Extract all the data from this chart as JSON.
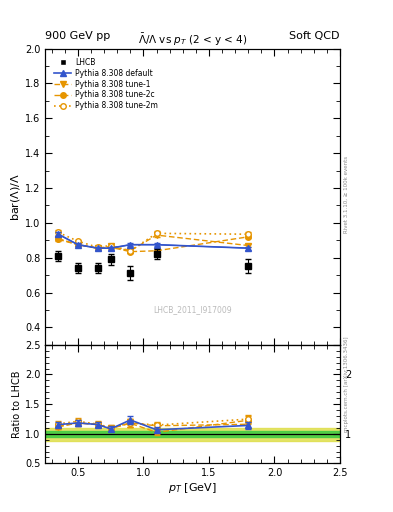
{
  "title_main": "$\\bar{\\Lambda}/\\Lambda$ vs $p_T$ (2 < y < 4)",
  "header_left": "900 GeV pp",
  "header_right": "Soft QCD",
  "ylabel_main": "bar($\\Lambda$)/$\\Lambda$",
  "ylabel_ratio": "Ratio to LHCB",
  "xlabel": "$p_T$ [GeV]",
  "right_label_top": "Rivet 3.1.10, ≥ 100k events",
  "right_label_bottom": "mcplots.cern.ch [arXiv:1306.3436]",
  "watermark": "LHCB_2011_I917009",
  "xlim": [
    0.25,
    2.5
  ],
  "ylim_main": [
    0.3,
    2.0
  ],
  "ylim_ratio": [
    0.5,
    2.5
  ],
  "lhcb_x": [
    0.35,
    0.5,
    0.65,
    0.75,
    0.9,
    1.1,
    1.8
  ],
  "lhcb_y": [
    0.81,
    0.74,
    0.74,
    0.79,
    0.71,
    0.82,
    0.75
  ],
  "lhcb_yerr": [
    0.03,
    0.03,
    0.03,
    0.03,
    0.04,
    0.03,
    0.04
  ],
  "pythia_default_x": [
    0.35,
    0.5,
    0.65,
    0.75,
    0.9,
    1.1,
    1.8
  ],
  "pythia_default_y": [
    0.935,
    0.875,
    0.855,
    0.855,
    0.875,
    0.875,
    0.855
  ],
  "pythia_default_yerr": [
    0.01,
    0.008,
    0.008,
    0.008,
    0.009,
    0.009,
    0.009
  ],
  "pythia_tune1_x": [
    0.35,
    0.5,
    0.65,
    0.75,
    0.9,
    1.1,
    1.8
  ],
  "pythia_tune1_y": [
    0.905,
    0.875,
    0.855,
    0.865,
    0.84,
    0.93,
    0.87
  ],
  "pythia_tune1_yerr": [
    0.01,
    0.008,
    0.008,
    0.008,
    0.009,
    0.012,
    0.01
  ],
  "pythia_tune2c_x": [
    0.35,
    0.5,
    0.65,
    0.75,
    0.9,
    1.1,
    1.8
  ],
  "pythia_tune2c_y": [
    0.91,
    0.875,
    0.855,
    0.86,
    0.835,
    0.84,
    0.92
  ],
  "pythia_tune2c_yerr": [
    0.01,
    0.008,
    0.008,
    0.008,
    0.009,
    0.009,
    0.009
  ],
  "pythia_tune2m_x": [
    0.35,
    0.5,
    0.65,
    0.75,
    0.9,
    1.1,
    1.8
  ],
  "pythia_tune2m_y": [
    0.945,
    0.895,
    0.86,
    0.87,
    0.84,
    0.94,
    0.935
  ],
  "pythia_tune2m_yerr": [
    0.012,
    0.009,
    0.009,
    0.009,
    0.01,
    0.012,
    0.012
  ],
  "color_default": "#3355cc",
  "color_orange": "#E69500",
  "band_color_green": "#44cc44",
  "band_color_yellow": "#dddd44",
  "green_band_y_lo": 0.95,
  "green_band_y_hi": 1.05,
  "yellow_band_y_lo": 0.88,
  "yellow_band_y_hi": 1.1
}
